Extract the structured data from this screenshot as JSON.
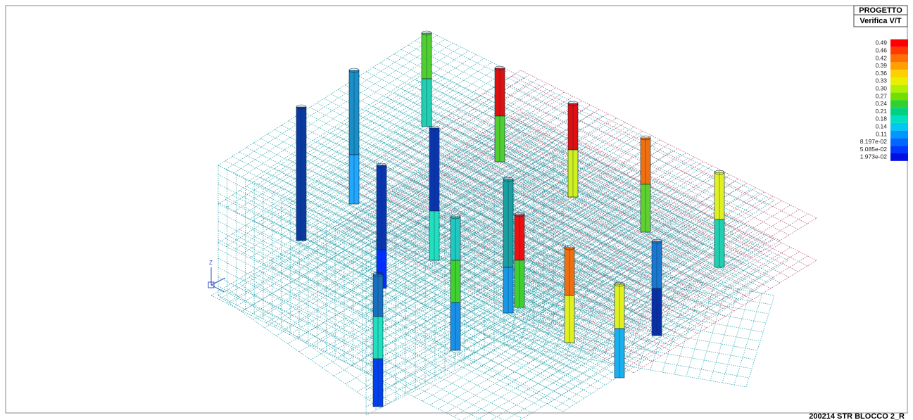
{
  "header": {
    "title": "PROGETTO",
    "subtitle": "Verifica V/T"
  },
  "legend": [
    {
      "label": "0.49",
      "color": "#ff0000"
    },
    {
      "label": "0.46",
      "color": "#ff3a00"
    },
    {
      "label": "0.42",
      "color": "#ff7000"
    },
    {
      "label": "0.39",
      "color": "#ffa000"
    },
    {
      "label": "0.36",
      "color": "#ffd000"
    },
    {
      "label": "0.33",
      "color": "#e8f000"
    },
    {
      "label": "0.30",
      "color": "#b0f000"
    },
    {
      "label": "0.27",
      "color": "#70e000"
    },
    {
      "label": "0.24",
      "color": "#30d030"
    },
    {
      "label": "0.21",
      "color": "#00d080"
    },
    {
      "label": "0.18",
      "color": "#00e0c0"
    },
    {
      "label": "0.14",
      "color": "#00c8f0"
    },
    {
      "label": "0.11",
      "color": "#0098ff"
    },
    {
      "label": "8.197e-02",
      "color": "#0068ff"
    },
    {
      "label": "5.085e-02",
      "color": "#0038ff"
    },
    {
      "label": "1.973e-02",
      "color": "#0010e0"
    }
  ],
  "footer": {
    "label": "200214 STR BLOCCO 2_R"
  }
}
